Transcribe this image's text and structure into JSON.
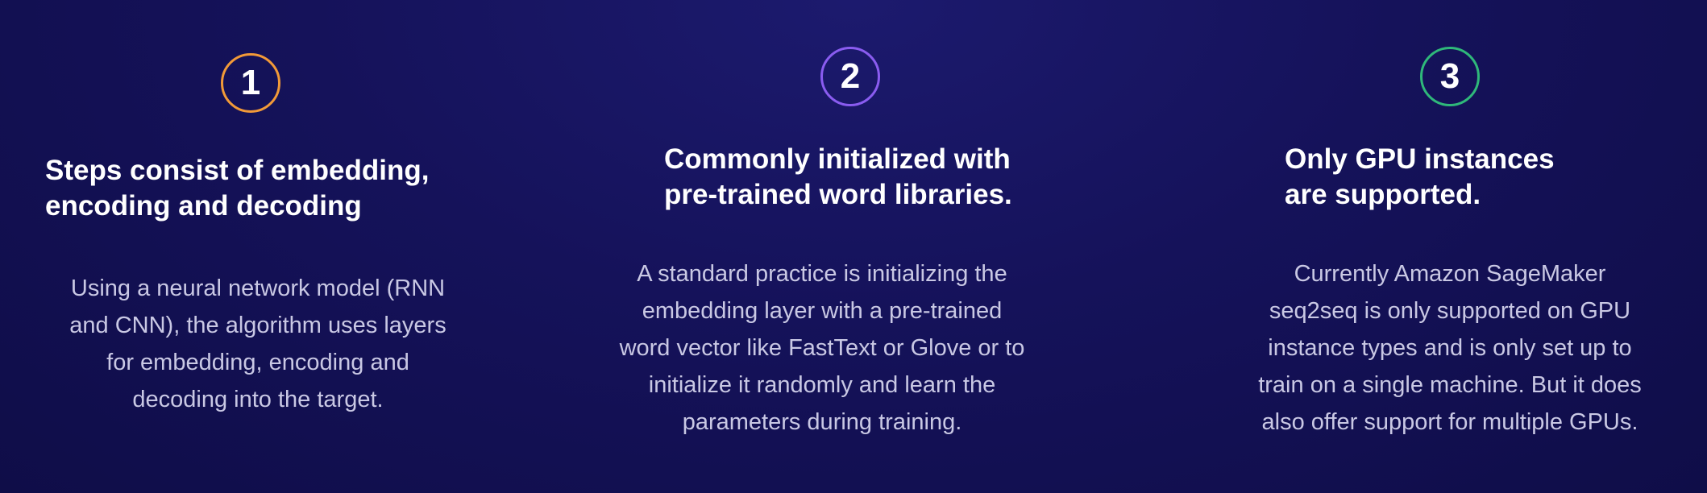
{
  "columns": [
    {
      "number": "1",
      "accent": "#f29a38",
      "heading_lines": [
        "Steps consist of embedding,",
        "encoding and decoding"
      ],
      "body_lines": [
        "Using a neural network model (RNN",
        "and CNN), the algorithm uses layers",
        "for embedding, encoding and",
        "decoding into the target."
      ]
    },
    {
      "number": "2",
      "accent": "#8a5cf0",
      "heading_lines": [
        "Commonly initialized with",
        "pre-trained word libraries."
      ],
      "body_lines": [
        "A standard practice is initializing the",
        "embedding layer with a pre-trained",
        "word vector like FastText or Glove or to",
        "initialize it randomly and learn the",
        "parameters during training."
      ]
    },
    {
      "number": "3",
      "accent": "#2fb87a",
      "heading_lines": [
        "Only GPU instances",
        "are supported."
      ],
      "body_lines": [
        "Currently Amazon SageMaker",
        "seq2seq is only supported on GPU",
        "instance types and is only set up to",
        "train on a single machine. But it does",
        "also offer support for multiple GPUs."
      ]
    }
  ]
}
